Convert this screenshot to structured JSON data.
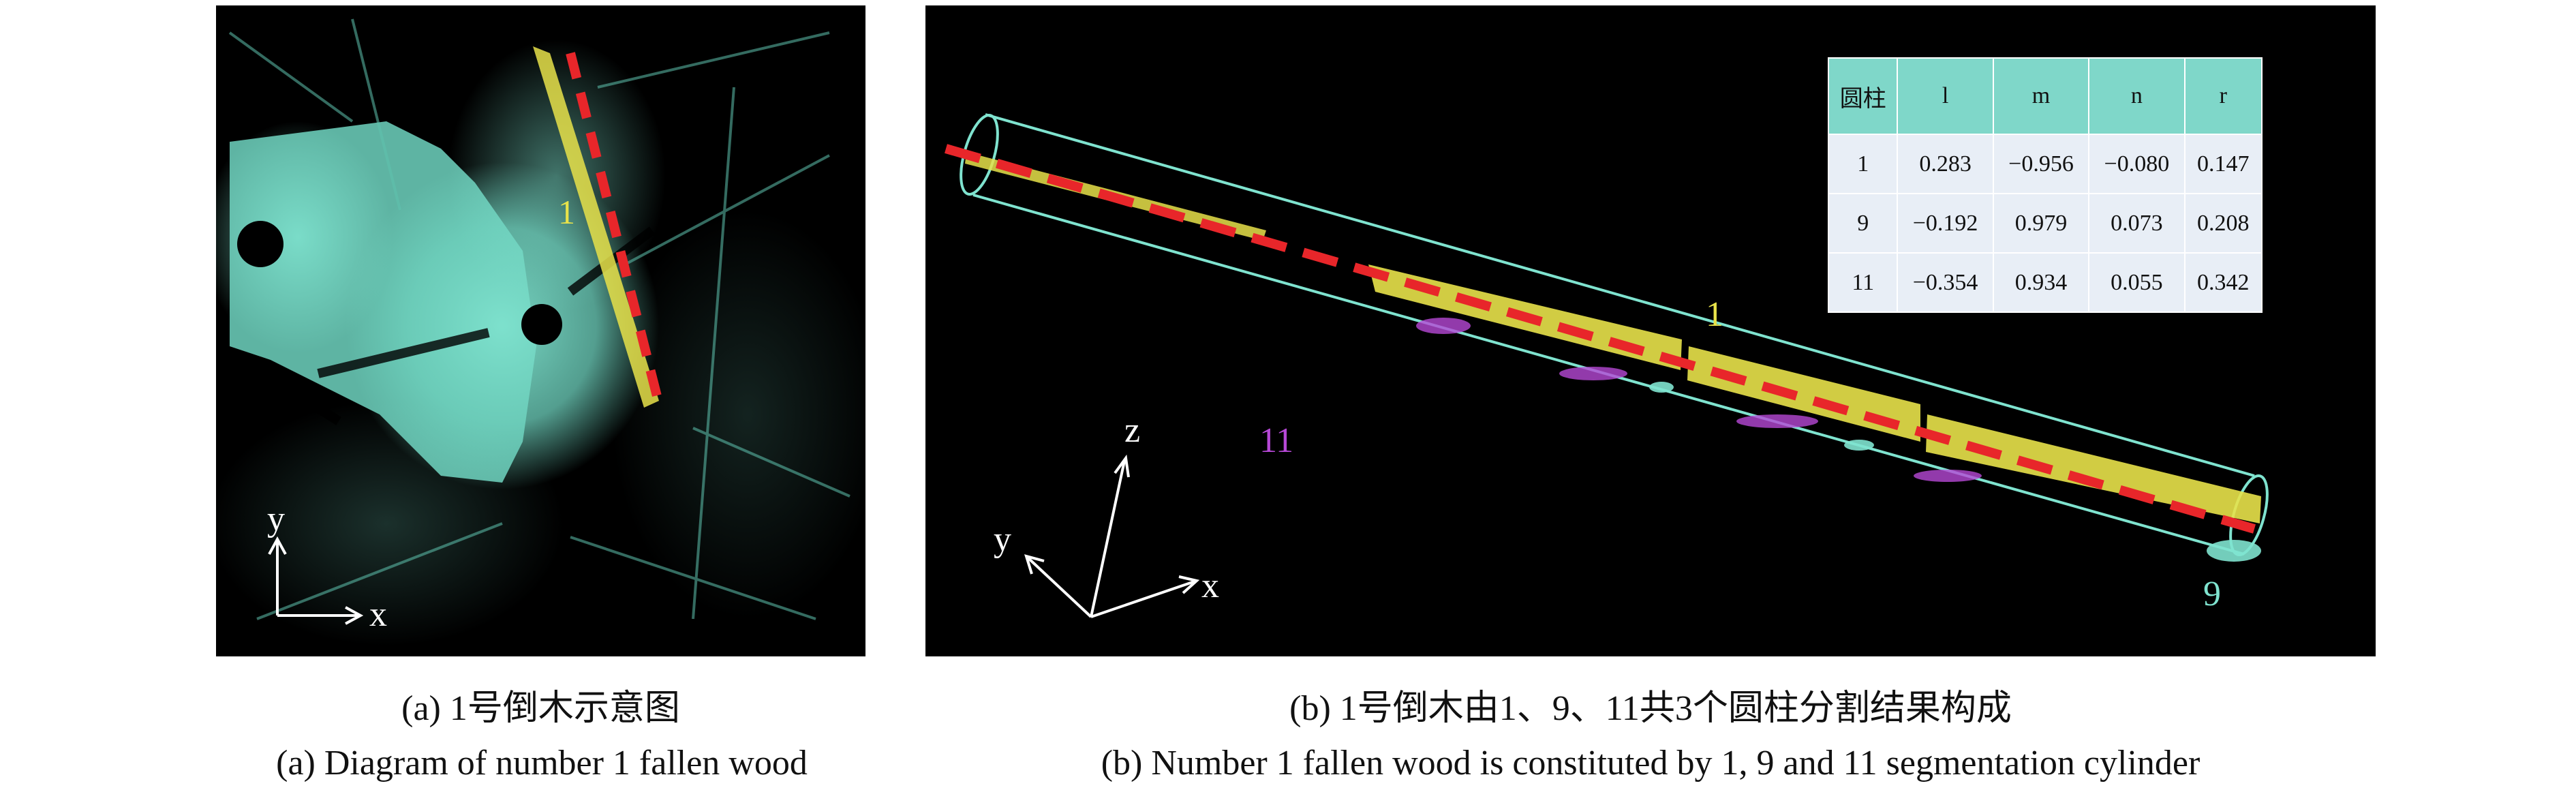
{
  "panel_a": {
    "fallen_wood_label": "1",
    "axis_y_label": "y",
    "axis_x_label": "x"
  },
  "panel_b": {
    "cylinder_labels": {
      "c1": "1",
      "c9": "9",
      "c11": "11"
    },
    "axis_z_label": "z",
    "axis_y_label": "y",
    "axis_x_label": "x",
    "table": {
      "headers": [
        "圆柱",
        "l",
        "m",
        "n",
        "r"
      ],
      "rows": [
        [
          "1",
          "0.283",
          "−0.956",
          "−0.080",
          "0.147"
        ],
        [
          "9",
          "−0.192",
          "0.979",
          "0.073",
          "0.208"
        ],
        [
          "11",
          "−0.354",
          "0.934",
          "0.055",
          "0.342"
        ]
      ]
    }
  },
  "captions": {
    "a_zh": "(a) 1号倒木示意图",
    "a_en": "(a) Diagram of number 1 fallen wood",
    "b_zh": "(b) 1号倒木由1、9、11共3个圆柱分割结果构成",
    "b_en": "(b) Number 1 fallen wood is constituted by 1, 9 and 11 segmentation cylinder"
  },
  "colors": {
    "background": "#000000",
    "point_cloud": "#7fe3cf",
    "wood_points": "#e8e24a",
    "dashed_line": "#e8262a",
    "cylinder_outline": "#7fe3cf",
    "label_1": "#e8e24a",
    "label_9": "#7fe3cf",
    "label_11": "#b648d6",
    "table_header": "#7fd7c9",
    "table_cell": "#e8eef6"
  }
}
